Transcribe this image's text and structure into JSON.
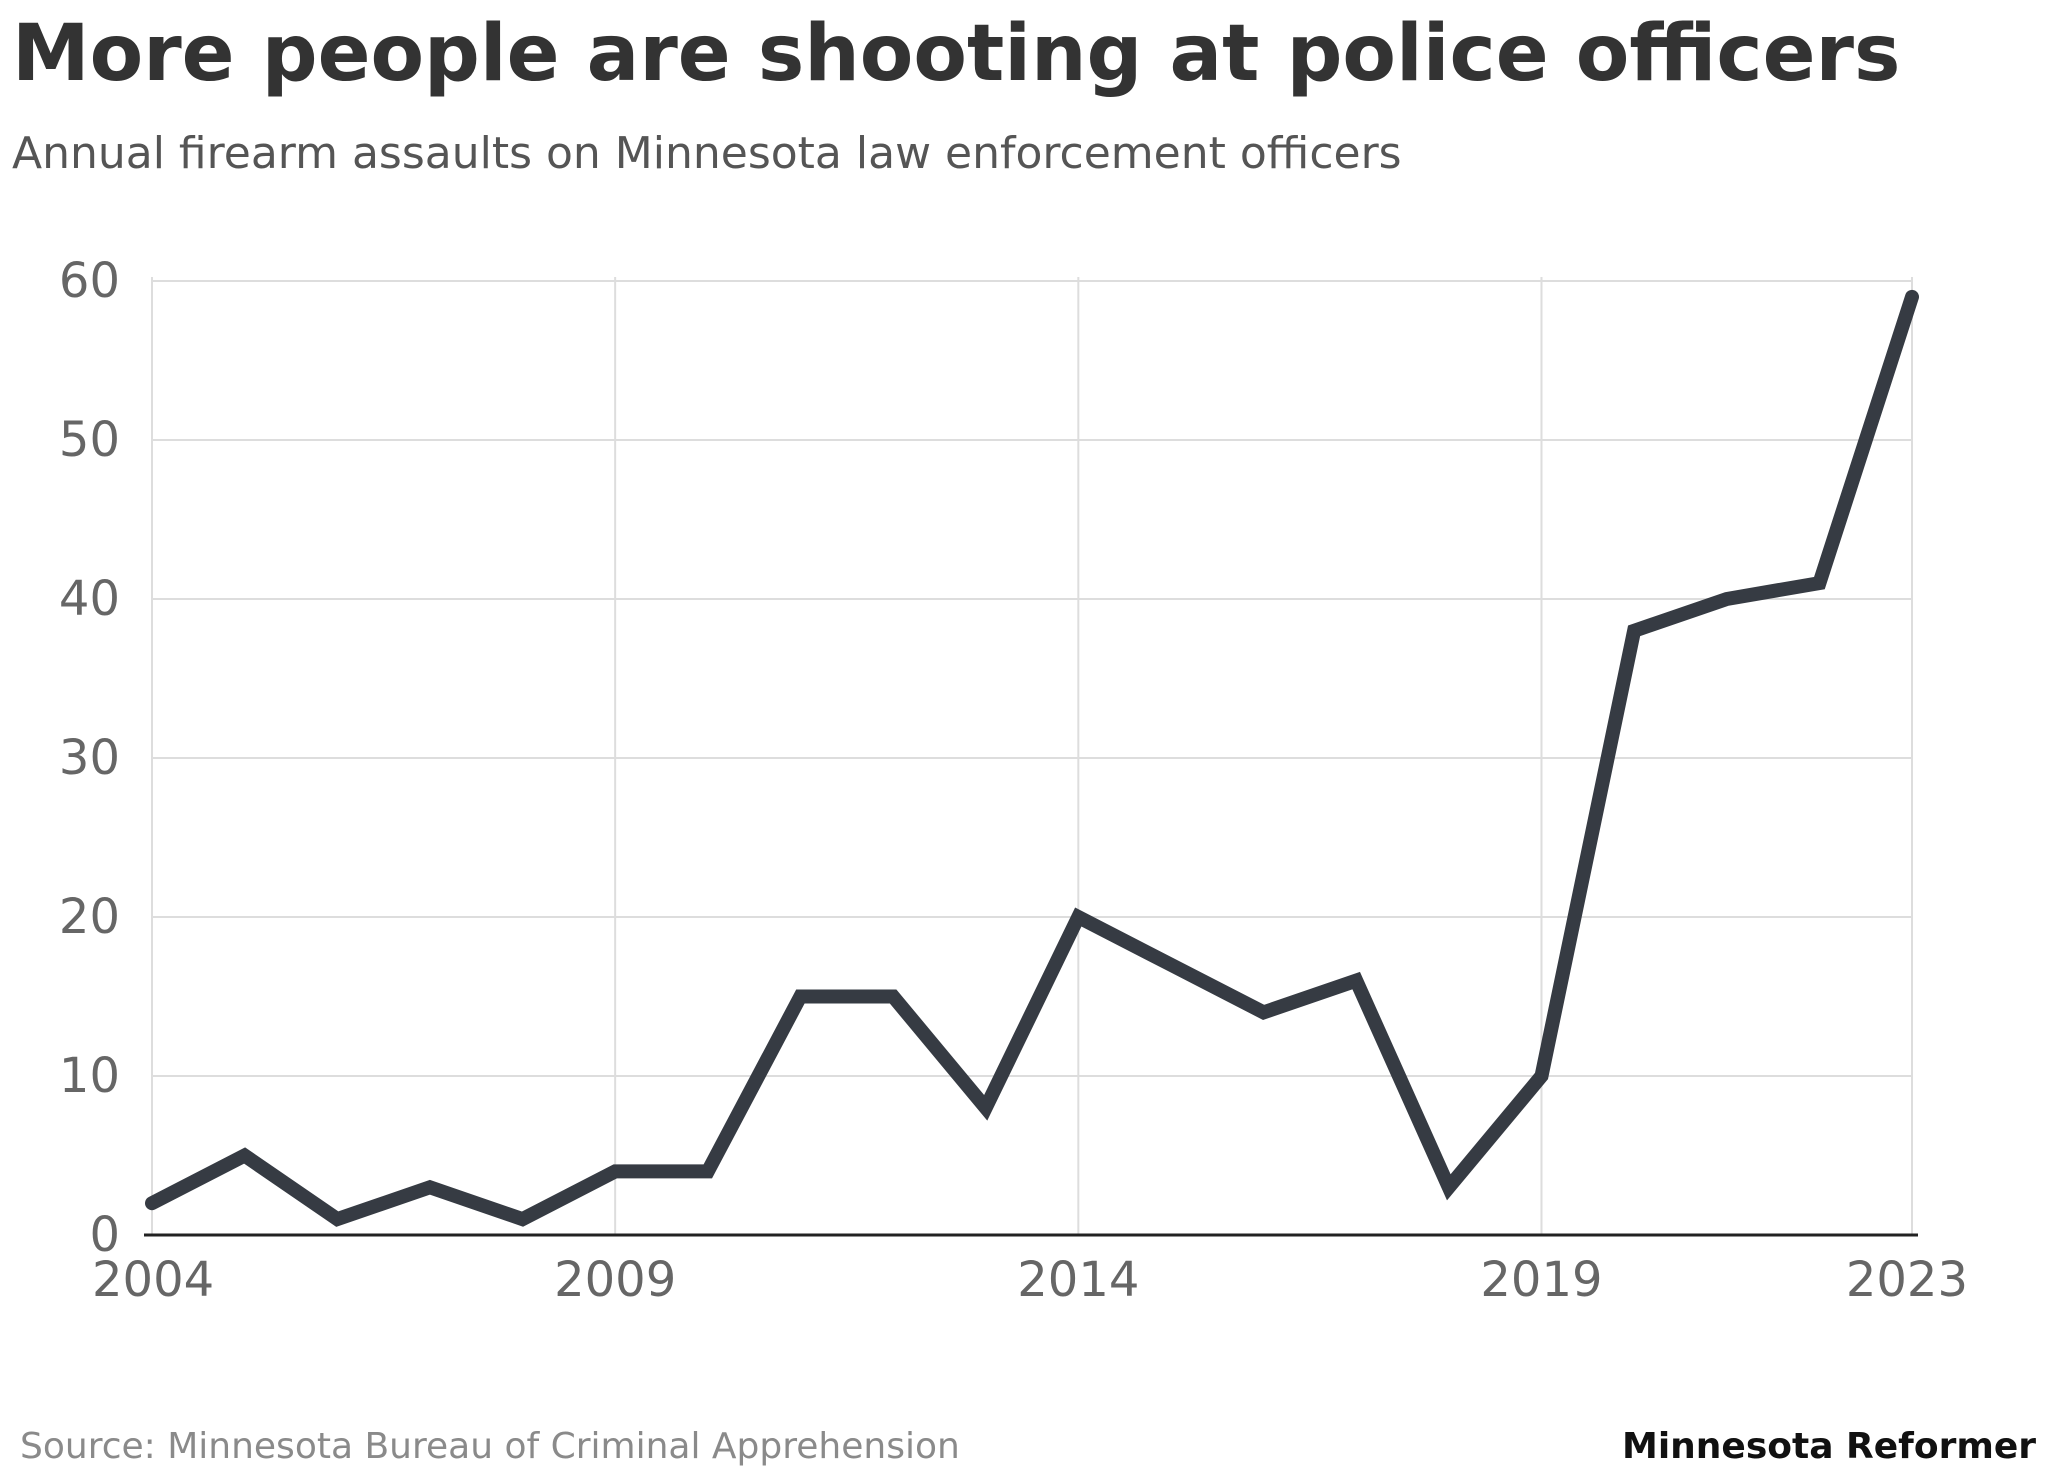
{
  "chart_data": {
    "type": "line",
    "title": "More people are shooting at police officers",
    "subtitle": "Annual firearm assaults on Minnesota law enforcement officers",
    "xlabel": "",
    "ylabel": "",
    "x": [
      2004,
      2005,
      2006,
      2007,
      2008,
      2009,
      2010,
      2011,
      2012,
      2013,
      2014,
      2015,
      2016,
      2017,
      2018,
      2019,
      2020,
      2021,
      2022,
      2023
    ],
    "series": [
      {
        "values": [
          2,
          5,
          1,
          3,
          1,
          4,
          4,
          15,
          15,
          8,
          20,
          17,
          14,
          16,
          3,
          10,
          38,
          40,
          41,
          59
        ]
      }
    ],
    "xlim": [
      2004,
      2023
    ],
    "ylim": [
      0,
      60
    ],
    "xticks": [
      "2004",
      "2009",
      "2014",
      "2019",
      "2023"
    ],
    "yticks": [
      "0",
      "10",
      "20",
      "30",
      "40",
      "50",
      "60"
    ],
    "grid": true,
    "legend": "none",
    "line_color": "#363b43",
    "grid_color": "#dddddd",
    "axis_color": "#222222",
    "source": "Source: Minnesota Bureau of Criminal Apprehension",
    "brand": "Minnesota Reformer"
  }
}
